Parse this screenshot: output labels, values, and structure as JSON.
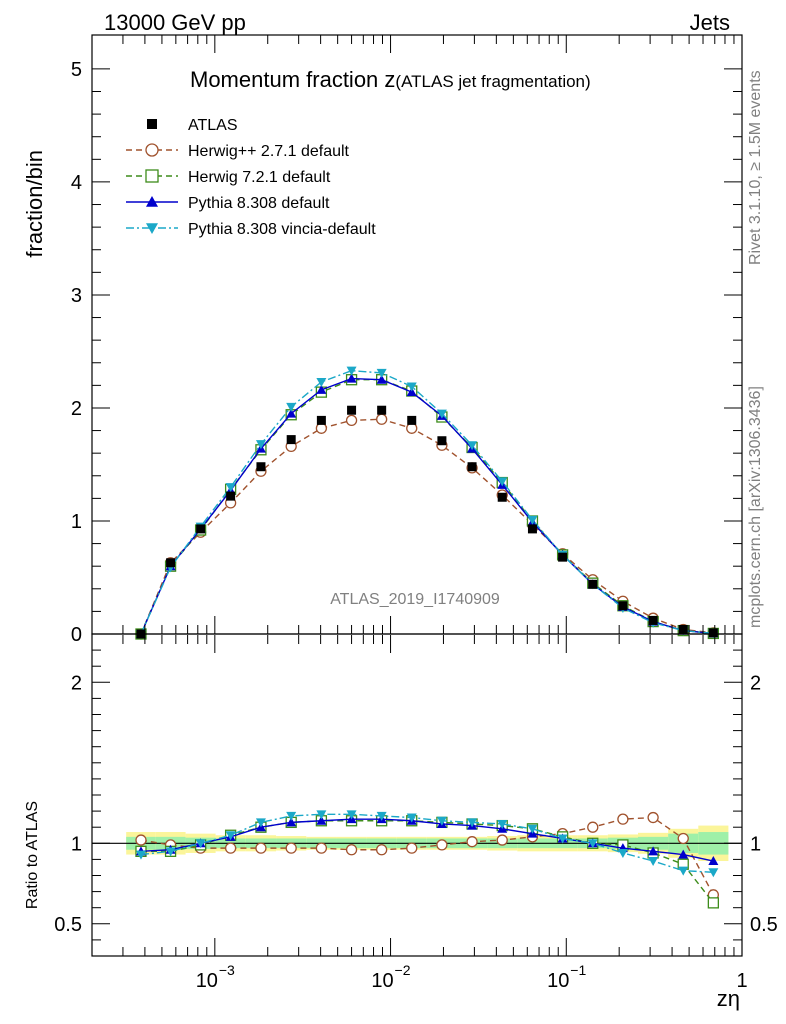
{
  "header": {
    "energy_label": "13000 GeV pp",
    "process_label": "Jets",
    "side_rivet": "Rivet 3.1.10, ≥ 1.5M events",
    "side_mcplots": "mcplots.cern.ch [arXiv:1306.3436]",
    "watermark": "ATLAS_2019_I1740909"
  },
  "chart_data": {
    "type": "line",
    "title_main": "Momentum fraction z",
    "title_sub": "(ATLAS jet fragmentation)",
    "ylabel": "fraction/bin",
    "ratio_ylabel": "Ratio to ATLAS",
    "xlabel": "zη",
    "xscale": "log",
    "xlim": [
      0.0002,
      1.0
    ],
    "ylim": [
      0,
      5.3
    ],
    "ratio_ylim": [
      0.3,
      2.3
    ],
    "grid": false,
    "legend_position": "top-left",
    "main_y_ticks": [
      "0",
      "1",
      "2",
      "3",
      "4",
      "5"
    ],
    "ratio_y_ticks": [
      "0.5",
      "1",
      "2"
    ],
    "x_tick_labels": [
      {
        "base": "10",
        "exp": "−3"
      },
      {
        "base": "10",
        "exp": "−2"
      },
      {
        "base": "10",
        "exp": "−1"
      },
      {
        "base": "1",
        "exp": ""
      }
    ],
    "x": [
      0.00038,
      0.00056,
      0.00083,
      0.00123,
      0.00183,
      0.00272,
      0.00404,
      0.006,
      0.0089,
      0.0132,
      0.0196,
      0.0291,
      0.0432,
      0.0642,
      0.0953,
      0.1415,
      0.21,
      0.312,
      0.463,
      0.687
    ],
    "data": {
      "name": "ATLAS",
      "values": [
        0.0,
        0.63,
        0.93,
        1.22,
        1.48,
        1.72,
        1.89,
        1.98,
        1.98,
        1.89,
        1.71,
        1.48,
        1.21,
        0.93,
        0.68,
        0.44,
        0.25,
        0.12,
        0.04,
        0.01
      ],
      "ratio_band_inner": [
        0.04,
        0.04,
        0.035,
        0.03,
        0.03,
        0.03,
        0.03,
        0.03,
        0.03,
        0.03,
        0.03,
        0.03,
        0.03,
        0.03,
        0.03,
        0.03,
        0.035,
        0.04,
        0.06,
        0.07
      ],
      "ratio_band_outer": [
        0.07,
        0.07,
        0.06,
        0.05,
        0.05,
        0.045,
        0.04,
        0.04,
        0.04,
        0.04,
        0.04,
        0.04,
        0.045,
        0.05,
        0.05,
        0.05,
        0.055,
        0.065,
        0.09,
        0.11
      ]
    },
    "series": [
      {
        "name": "Herwig++ 2.7.1 default",
        "color": "#a0522d",
        "dash": "6,4",
        "marker": "open-circle",
        "values": [
          0.0,
          0.63,
          0.9,
          1.16,
          1.44,
          1.66,
          1.82,
          1.89,
          1.9,
          1.82,
          1.67,
          1.47,
          1.23,
          0.97,
          0.71,
          0.48,
          0.29,
          0.14,
          0.04,
          0.01
        ],
        "ratio": [
          1.02,
          0.99,
          0.97,
          0.97,
          0.97,
          0.97,
          0.97,
          0.96,
          0.96,
          0.97,
          0.99,
          1.01,
          1.02,
          1.04,
          1.06,
          1.1,
          1.15,
          1.16,
          1.03,
          0.68
        ]
      },
      {
        "name": "Herwig 7.2.1 default",
        "color": "#3d8c1a",
        "dash": "6,4",
        "marker": "open-square",
        "values": [
          0.0,
          0.6,
          0.92,
          1.28,
          1.63,
          1.94,
          2.14,
          2.25,
          2.25,
          2.15,
          1.92,
          1.65,
          1.34,
          1.0,
          0.7,
          0.45,
          0.25,
          0.11,
          0.03,
          0.005
        ],
        "ratio": [
          0.95,
          0.95,
          0.99,
          1.05,
          1.1,
          1.13,
          1.14,
          1.14,
          1.14,
          1.14,
          1.13,
          1.12,
          1.11,
          1.09,
          1.04,
          1.0,
          0.99,
          0.94,
          0.87,
          0.63
        ]
      },
      {
        "name": "Pythia 8.308 default",
        "color": "#0000cc",
        "dash": "",
        "marker": "triangle-up",
        "values": [
          0.0,
          0.6,
          0.93,
          1.27,
          1.64,
          1.95,
          2.16,
          2.26,
          2.25,
          2.14,
          1.93,
          1.64,
          1.32,
          0.99,
          0.7,
          0.44,
          0.24,
          0.11,
          0.03,
          0.005
        ],
        "ratio": [
          0.95,
          0.96,
          1.0,
          1.04,
          1.1,
          1.13,
          1.14,
          1.15,
          1.15,
          1.14,
          1.12,
          1.11,
          1.09,
          1.06,
          1.03,
          1.0,
          0.97,
          0.95,
          0.93,
          0.89
        ]
      },
      {
        "name": "Pythia 8.308 vincia-default",
        "color": "#1ba8c8",
        "dash": "8,3,2,3",
        "marker": "triangle-down",
        "values": [
          0.0,
          0.59,
          0.95,
          1.3,
          1.68,
          2.01,
          2.23,
          2.33,
          2.31,
          2.19,
          1.95,
          1.67,
          1.35,
          1.01,
          0.7,
          0.44,
          0.23,
          0.1,
          0.03,
          0.005
        ],
        "ratio": [
          0.93,
          0.95,
          1.0,
          1.05,
          1.13,
          1.17,
          1.18,
          1.18,
          1.17,
          1.16,
          1.14,
          1.13,
          1.12,
          1.09,
          1.03,
          1.0,
          0.94,
          0.89,
          0.83,
          0.82
        ]
      }
    ]
  }
}
